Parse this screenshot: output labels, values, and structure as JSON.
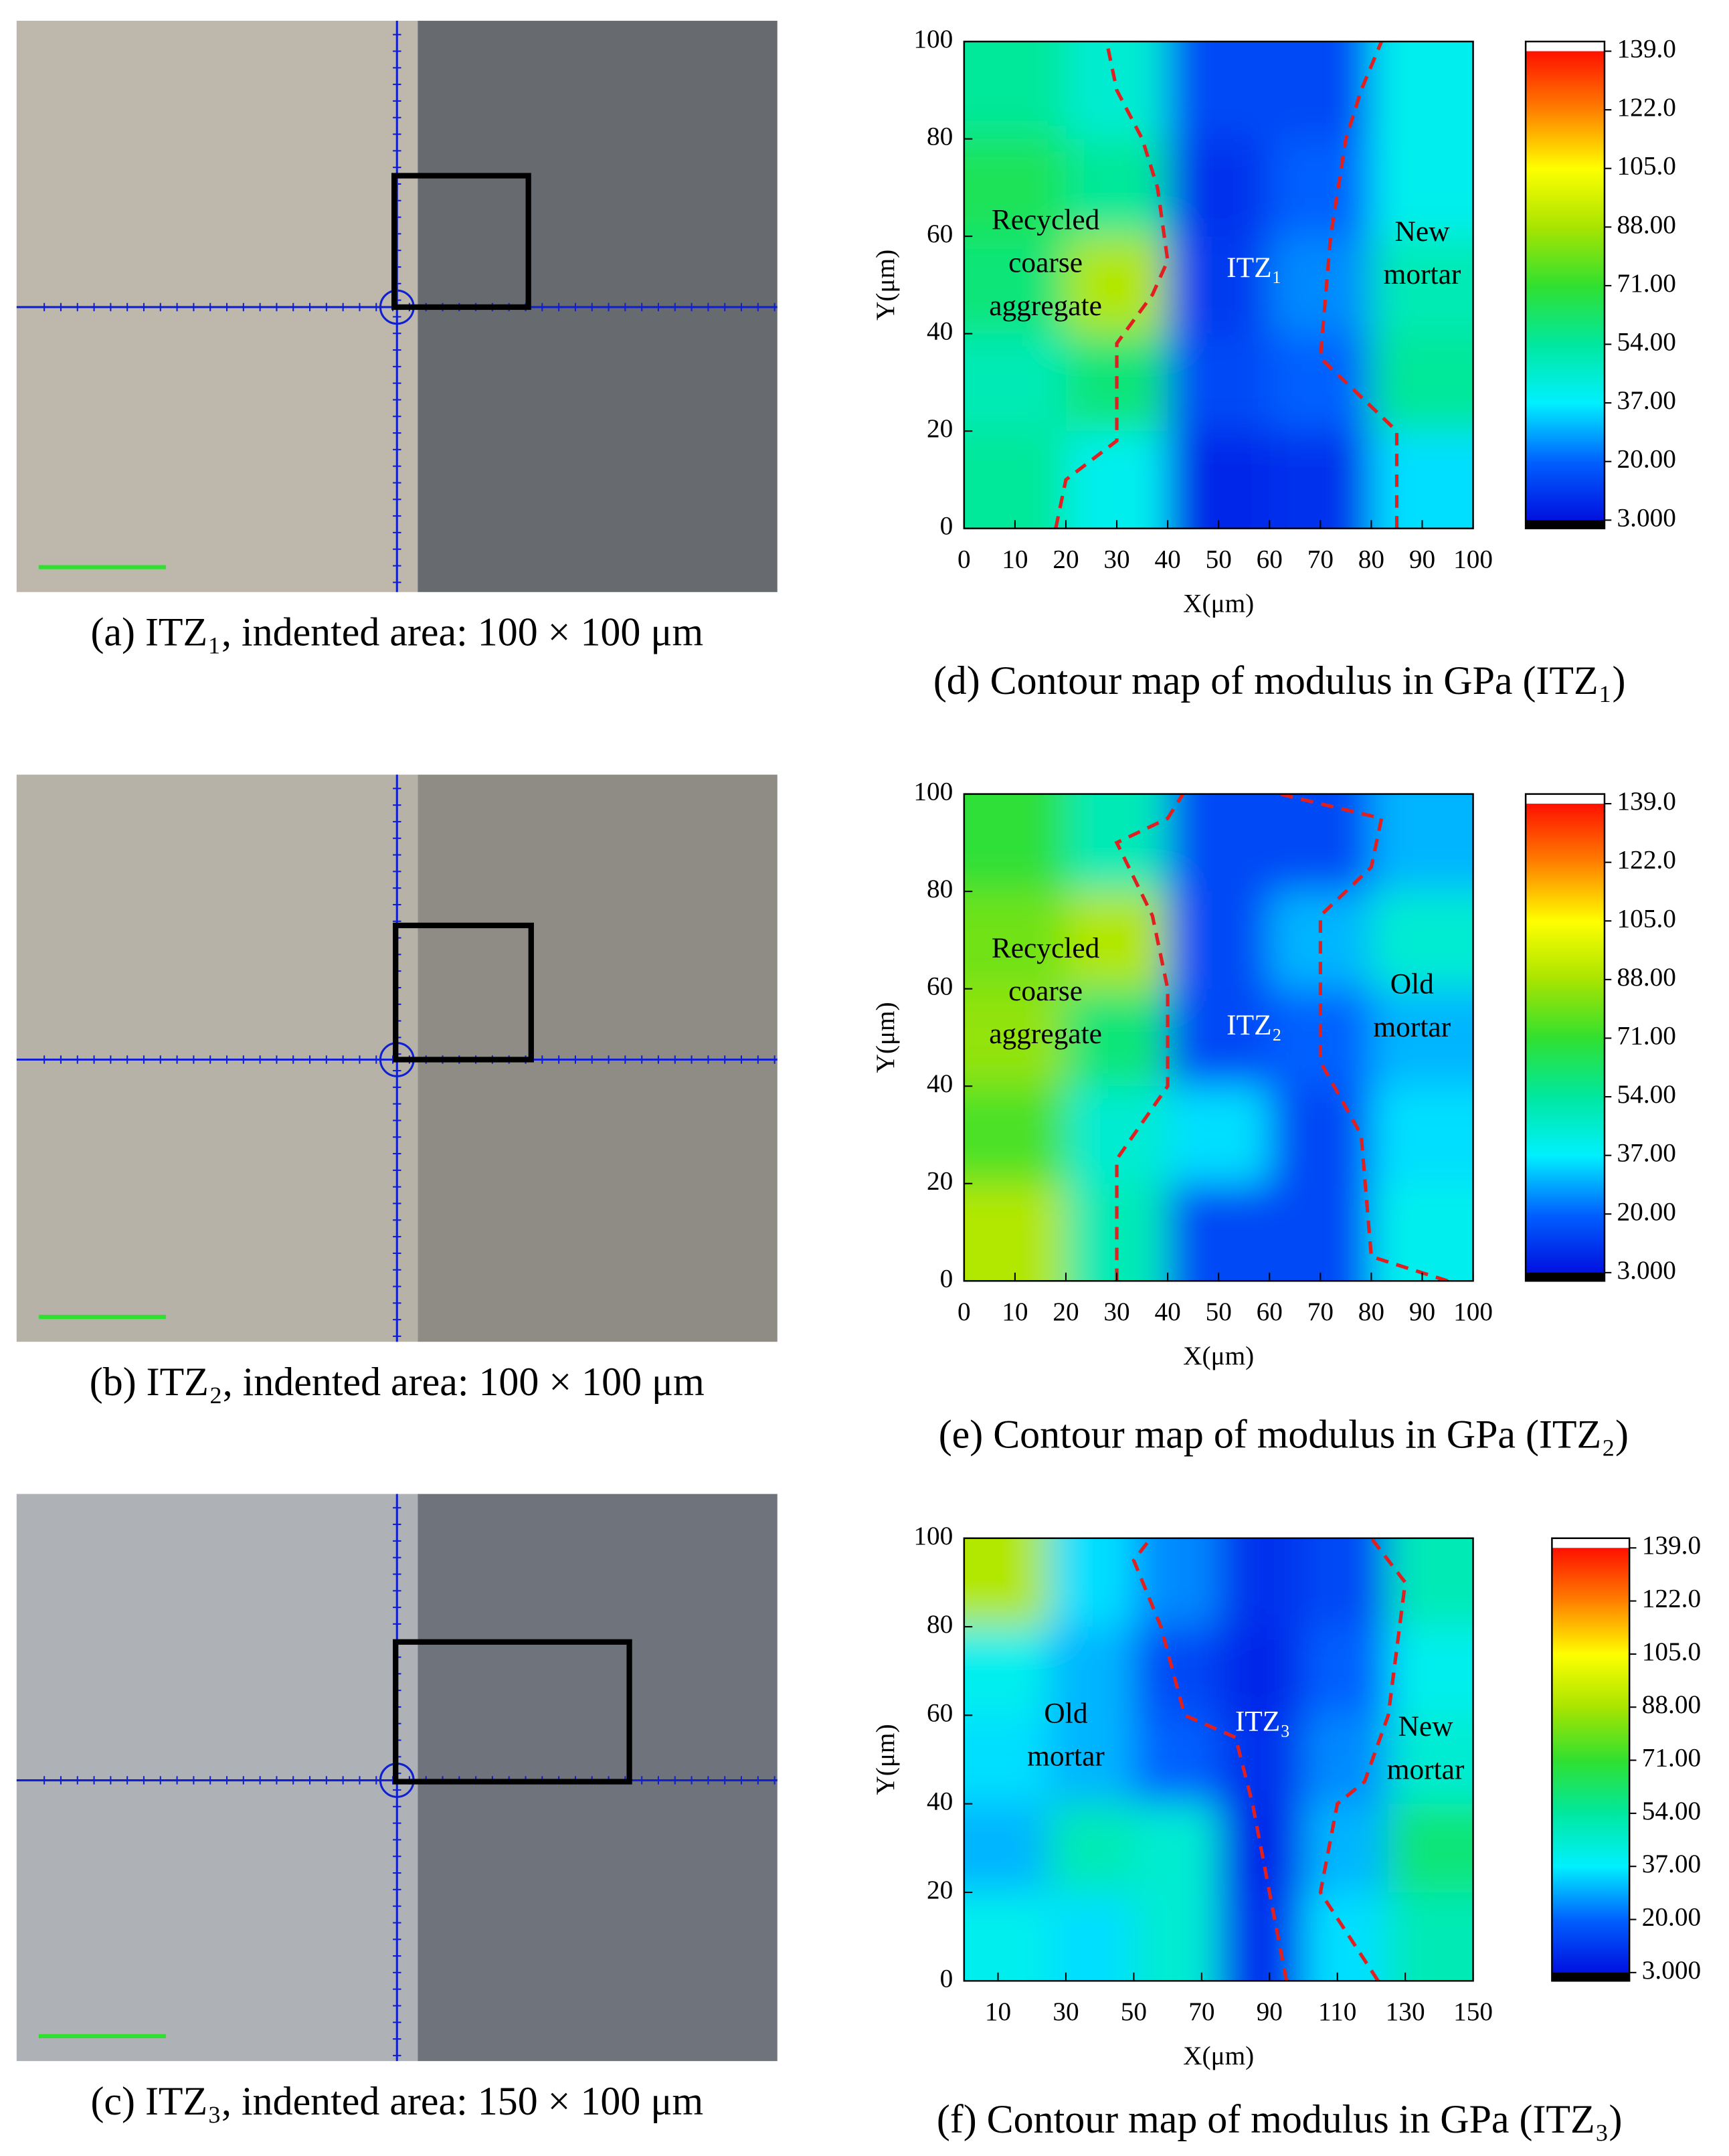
{
  "photos": [
    {
      "caption": "(a) ITZ₁, indented area: 100 × 100 μm"
    },
    {
      "caption": "(b) ITZ₂, indented area: 100 × 100 μm"
    },
    {
      "caption": "(c) ITZ₃, indented area: 150 × 100 μm"
    }
  ],
  "chart_data": [
    {
      "type": "contour",
      "caption": "(d) Contour map of modulus in GPa (ITZ₁)",
      "x_label": "X(μm)",
      "y_label": "Y(μm)",
      "xlim": [
        0,
        100
      ],
      "ylim": [
        0,
        100
      ],
      "xticks": [
        0,
        10,
        20,
        30,
        40,
        50,
        60,
        70,
        80,
        90,
        100
      ],
      "yticks": [
        0,
        20,
        40,
        60,
        80,
        100
      ],
      "x": [
        10,
        30,
        50,
        70,
        90
      ],
      "y": [
        10,
        30,
        50,
        70,
        90
      ],
      "z": [
        [
          55,
          40,
          8,
          10,
          35
        ],
        [
          50,
          60,
          15,
          20,
          55
        ],
        [
          60,
          90,
          12,
          25,
          50
        ],
        [
          65,
          55,
          10,
          20,
          40
        ],
        [
          55,
          45,
          15,
          15,
          40
        ]
      ],
      "colorbar_ticks": [
        {
          "value": 3,
          "label": "3.000"
        },
        {
          "value": 20,
          "label": "20.00"
        },
        {
          "value": 37,
          "label": "37.00"
        },
        {
          "value": 54,
          "label": "54.00"
        },
        {
          "value": 71,
          "label": "71.00"
        },
        {
          "value": 88,
          "label": "88.00"
        },
        {
          "value": 105,
          "label": "105.0"
        },
        {
          "value": 122,
          "label": "122.0"
        },
        {
          "value": 139,
          "label": "139.0"
        }
      ],
      "colormap": [
        "#0010e0",
        "#0060ff",
        "#00f0ff",
        "#00e8a0",
        "#30e030",
        "#a8e400",
        "#ffff00",
        "#ff8000",
        "#ff1000"
      ],
      "boundary_color": "#e02020",
      "boundaries": [
        {
          "x": [
            18,
            20,
            30,
            30,
            37,
            40,
            38,
            35,
            30,
            28
          ],
          "y": [
            0,
            10,
            18,
            38,
            48,
            55,
            70,
            80,
            90,
            100
          ]
        },
        {
          "x": [
            85,
            85,
            75,
            70,
            72,
            75,
            78,
            82
          ],
          "y": [
            0,
            20,
            30,
            35,
            60,
            80,
            90,
            100
          ]
        }
      ],
      "annotations": [
        {
          "lines": [
            "Recycled",
            "coarse",
            "aggregate"
          ],
          "x": 16,
          "y": 54,
          "color": "#000000"
        },
        {
          "lines": [
            "ITZ₁"
          ],
          "x": 57,
          "y": 53,
          "color": "#ffffff"
        },
        {
          "lines": [
            "New",
            "mortar"
          ],
          "x": 90,
          "y": 56,
          "color": "#000000"
        }
      ]
    },
    {
      "type": "contour",
      "caption": "(e) Contour map of modulus in GPa (ITZ₂)",
      "x_label": "X(μm)",
      "y_label": "Y(μm)",
      "xlim": [
        0,
        100
      ],
      "ylim": [
        0,
        100
      ],
      "xticks": [
        0,
        10,
        20,
        30,
        40,
        50,
        60,
        70,
        80,
        90,
        100
      ],
      "yticks": [
        0,
        20,
        40,
        60,
        80,
        100
      ],
      "x": [
        10,
        30,
        50,
        70,
        90
      ],
      "y": [
        10,
        30,
        50,
        70,
        90
      ],
      "z": [
        [
          90,
          50,
          15,
          15,
          40
        ],
        [
          75,
          45,
          35,
          15,
          35
        ],
        [
          85,
          60,
          15,
          20,
          30
        ],
        [
          80,
          90,
          15,
          30,
          45
        ],
        [
          70,
          50,
          15,
          15,
          30
        ]
      ],
      "colorbar_ticks": [
        {
          "value": 3,
          "label": "3.000"
        },
        {
          "value": 20,
          "label": "20.00"
        },
        {
          "value": 37,
          "label": "37.00"
        },
        {
          "value": 54,
          "label": "54.00"
        },
        {
          "value": 71,
          "label": "71.00"
        },
        {
          "value": 88,
          "label": "88.00"
        },
        {
          "value": 105,
          "label": "105.0"
        },
        {
          "value": 122,
          "label": "122.0"
        },
        {
          "value": 139,
          "label": "139.0"
        }
      ],
      "colormap": [
        "#0010e0",
        "#0060ff",
        "#00f0ff",
        "#00e8a0",
        "#30e030",
        "#a8e400",
        "#ffff00",
        "#ff8000",
        "#ff1000"
      ],
      "boundary_color": "#e02020",
      "boundaries": [
        {
          "x": [
            30,
            30,
            40,
            40,
            37,
            30,
            40,
            43
          ],
          "y": [
            0,
            25,
            40,
            60,
            75,
            90,
            95,
            100
          ]
        },
        {
          "x": [
            95,
            80,
            78,
            70,
            70,
            80,
            82,
            62
          ],
          "y": [
            0,
            5,
            30,
            45,
            75,
            85,
            95,
            100
          ]
        }
      ],
      "annotations": [
        {
          "lines": [
            "Recycled",
            "coarse",
            "aggregate"
          ],
          "x": 16,
          "y": 59,
          "color": "#000000"
        },
        {
          "lines": [
            "ITZ₂"
          ],
          "x": 57,
          "y": 52,
          "color": "#ffffff"
        },
        {
          "lines": [
            "Old",
            "mortar"
          ],
          "x": 88,
          "y": 56,
          "color": "#000000"
        }
      ]
    },
    {
      "type": "contour",
      "caption": "(f) Contour map of modulus in GPa (ITZ₃)",
      "x_label": "X(μm)",
      "y_label": "Y(μm)",
      "xlim": [
        0,
        150
      ],
      "ylim": [
        0,
        100
      ],
      "xticks": [
        10,
        30,
        50,
        70,
        90,
        110,
        130,
        150
      ],
      "yticks": [
        0,
        20,
        40,
        60,
        80,
        100
      ],
      "x": [
        12.5,
        37.5,
        62.5,
        87.5,
        112.5,
        137.5
      ],
      "y": [
        10,
        30,
        50,
        70,
        90
      ],
      "z": [
        [
          40,
          35,
          45,
          10,
          35,
          50
        ],
        [
          30,
          50,
          45,
          8,
          30,
          60
        ],
        [
          35,
          30,
          20,
          10,
          25,
          45
        ],
        [
          40,
          30,
          15,
          8,
          20,
          40
        ],
        [
          90,
          35,
          25,
          10,
          15,
          50
        ]
      ],
      "colorbar_ticks": [
        {
          "value": 3,
          "label": "3.000"
        },
        {
          "value": 20,
          "label": "20.00"
        },
        {
          "value": 37,
          "label": "37.00"
        },
        {
          "value": 54,
          "label": "54.00"
        },
        {
          "value": 71,
          "label": "71.00"
        },
        {
          "value": 88,
          "label": "88.00"
        },
        {
          "value": 105,
          "label": "105.0"
        },
        {
          "value": 122,
          "label": "122.0"
        },
        {
          "value": 139,
          "label": "139.0"
        }
      ],
      "colormap": [
        "#0010e0",
        "#0060ff",
        "#00f0ff",
        "#00e8a0",
        "#30e030",
        "#a8e400",
        "#ffff00",
        "#ff8000",
        "#ff1000"
      ],
      "boundary_color": "#e02020",
      "boundaries": [
        {
          "x": [
            95,
            90,
            85,
            80,
            65,
            58,
            50,
            55
          ],
          "y": [
            0,
            20,
            40,
            55,
            60,
            80,
            95,
            100
          ]
        },
        {
          "x": [
            122,
            105,
            110,
            118,
            125,
            130,
            120
          ],
          "y": [
            0,
            20,
            40,
            45,
            60,
            90,
            100
          ]
        }
      ],
      "annotations": [
        {
          "lines": [
            "Old",
            "mortar"
          ],
          "x": 30,
          "y": 55,
          "color": "#000000"
        },
        {
          "lines": [
            "ITZ₃"
          ],
          "x": 88,
          "y": 58,
          "color": "#ffffff"
        },
        {
          "lines": [
            "New",
            "mortar"
          ],
          "x": 136,
          "y": 52,
          "color": "#000000"
        }
      ]
    }
  ]
}
